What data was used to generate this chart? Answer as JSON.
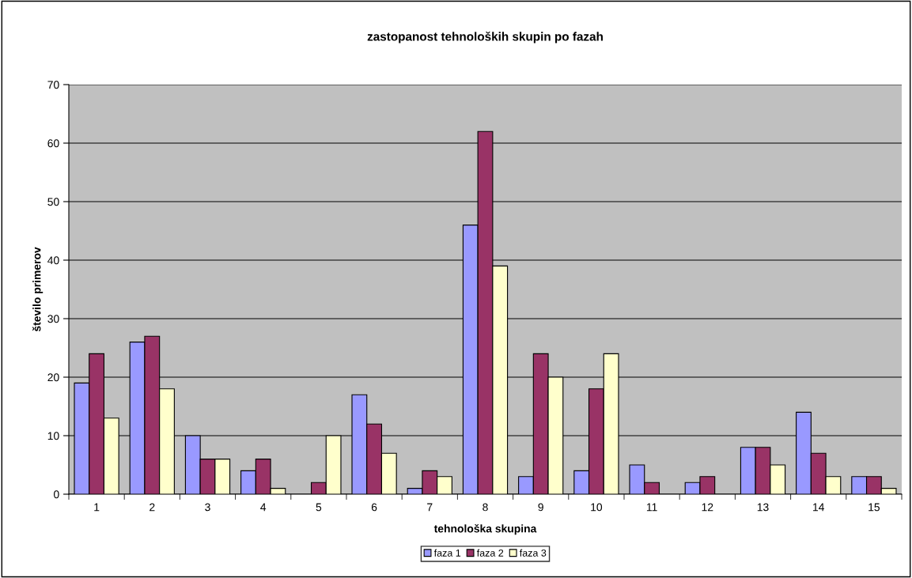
{
  "chart_data": {
    "type": "bar",
    "title": "zastopanost tehnoloških skupin po fazah",
    "xlabel": "tehnološka skupina",
    "ylabel": "število primerov",
    "categories": [
      "1",
      "2",
      "3",
      "4",
      "5",
      "6",
      "7",
      "8",
      "9",
      "10",
      "11",
      "12",
      "13",
      "14",
      "15"
    ],
    "series": [
      {
        "name": "faza 1",
        "color": "#9999ff",
        "values": [
          19,
          26,
          10,
          4,
          0,
          17,
          1,
          46,
          3,
          4,
          5,
          2,
          8,
          14,
          3
        ]
      },
      {
        "name": "faza 2",
        "color": "#993366",
        "values": [
          24,
          27,
          6,
          6,
          2,
          12,
          4,
          62,
          24,
          18,
          2,
          3,
          8,
          7,
          3
        ]
      },
      {
        "name": "faza 3",
        "color": "#ffffcc",
        "values": [
          13,
          18,
          6,
          1,
          10,
          7,
          3,
          39,
          20,
          24,
          0,
          0,
          5,
          3,
          1
        ]
      }
    ],
    "ylim": [
      0,
      70
    ],
    "yticks": [
      0,
      10,
      20,
      30,
      40,
      50,
      60,
      70
    ],
    "grid": "y",
    "legend": "bottom"
  }
}
